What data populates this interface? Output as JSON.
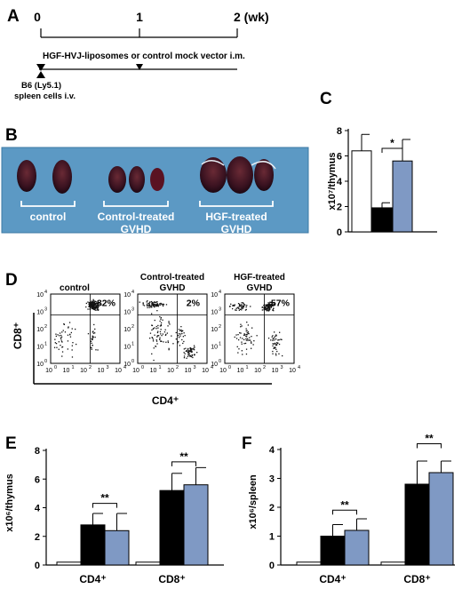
{
  "panel_a": {
    "letter": "A",
    "timeline_labels": [
      "0",
      "1",
      "2 (wk)"
    ],
    "treatment_text": "HGF-HVJ-liposomes or control mock vector i.m.",
    "transfer_text_line1": "B6 (Ly5.1)",
    "transfer_text_line2": "spleen cells i.v."
  },
  "panel_b": {
    "letter": "B",
    "groups": [
      "control",
      "Control-treated GVHD",
      "HGF-treated GVHD"
    ],
    "group_lines": [
      [
        "control"
      ],
      [
        "Control-treated",
        "GVHD"
      ],
      [
        "HGF-treated",
        "GVHD"
      ]
    ]
  },
  "panel_c": {
    "letter": "C",
    "ylabel": "x10⁷/thymus",
    "significance": "*",
    "chart_data": {
      "type": "bar",
      "categories": [
        "control",
        "Control-treated GVHD",
        "HGF-treated GVHD"
      ],
      "values": [
        6.4,
        1.9,
        5.6
      ],
      "errors": [
        1.3,
        0.4,
        1.7
      ],
      "colors": [
        "#ffffff",
        "#000000",
        "#7f99c4"
      ],
      "ylim": [
        0,
        8
      ],
      "yticks": [
        0,
        2,
        4,
        6,
        8
      ],
      "ylabel": "x10⁷/thymus"
    }
  },
  "panel_d": {
    "letter": "D",
    "plots": [
      {
        "title_lines": [
          "control"
        ],
        "percent": "82%"
      },
      {
        "title_lines": [
          "Control-treated",
          "GVHD"
        ],
        "percent": "2%"
      },
      {
        "title_lines": [
          "HGF-treated",
          "GVHD"
        ],
        "percent": "57%"
      }
    ],
    "ylabel": "CD8⁺",
    "xlabel": "CD4⁺",
    "tick_base": "10",
    "tick_exps": [
      "0",
      "1",
      "2",
      "3",
      "4"
    ]
  },
  "panel_e": {
    "letter": "E",
    "ylabel": "x10⁶/thymus",
    "significance": [
      "**",
      "**"
    ],
    "chart_data": {
      "type": "bar",
      "categories": [
        "CD4⁺",
        "CD8⁺"
      ],
      "series": [
        {
          "values": [
            0.2,
            0.2
          ],
          "errors": [
            0,
            0
          ],
          "color": "#ffffff"
        },
        {
          "values": [
            2.8,
            5.2
          ],
          "errors": [
            0.8,
            1.2
          ],
          "color": "#000000"
        },
        {
          "values": [
            2.4,
            5.6
          ],
          "errors": [
            1.2,
            1.2
          ],
          "color": "#7f99c4"
        }
      ],
      "ylim": [
        0,
        8
      ],
      "yticks": [
        0,
        2,
        4,
        6,
        8
      ],
      "ylabel": "x10⁶/thymus"
    }
  },
  "panel_f": {
    "letter": "F",
    "ylabel": "x10⁶/spleen",
    "significance": [
      "**",
      "**"
    ],
    "chart_data": {
      "type": "bar",
      "categories": [
        "CD4⁺",
        "CD8⁺"
      ],
      "series": [
        {
          "values": [
            0.1,
            0.1
          ],
          "errors": [
            0,
            0
          ],
          "color": "#ffffff"
        },
        {
          "values": [
            1.0,
            2.8
          ],
          "errors": [
            0.4,
            0.8
          ],
          "color": "#000000"
        },
        {
          "values": [
            1.2,
            3.2
          ],
          "errors": [
            0.4,
            0.4
          ],
          "color": "#7f99c4"
        }
      ],
      "ylim": [
        0,
        4
      ],
      "yticks": [
        0,
        1,
        2,
        3,
        4
      ],
      "ylabel": "x10⁶/spleen"
    }
  }
}
